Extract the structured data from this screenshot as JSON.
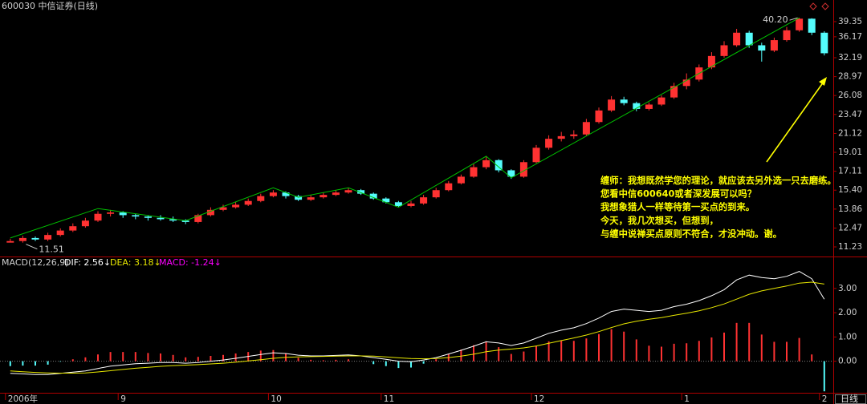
{
  "chart_data": [
    {
      "type": "candlestick",
      "title": "600030 中信证券(日线)",
      "period": "日线",
      "log_scale": true,
      "up_color": "#ff3232",
      "down_color": "#54fcfc",
      "categories": [
        "2006年",
        null,
        null,
        null,
        null,
        null,
        null,
        null,
        null,
        "9",
        null,
        null,
        null,
        null,
        null,
        null,
        null,
        null,
        null,
        null,
        null,
        "10",
        null,
        null,
        null,
        null,
        null,
        null,
        null,
        null,
        "11",
        null,
        null,
        null,
        null,
        null,
        null,
        null,
        null,
        null,
        null,
        null,
        "12",
        null,
        null,
        null,
        null,
        null,
        null,
        null,
        null,
        null,
        null,
        null,
        "1",
        null,
        null,
        null,
        null,
        null,
        null,
        null,
        null,
        null,
        null,
        "2"
      ],
      "open": [
        11.5,
        11.6,
        11.8,
        11.7,
        12.0,
        12.3,
        12.6,
        13.0,
        13.5,
        13.6,
        13.4,
        13.3,
        13.2,
        13.1,
        13.0,
        12.9,
        13.4,
        13.8,
        14.0,
        14.2,
        14.5,
        14.9,
        15.2,
        14.9,
        14.6,
        14.8,
        15.0,
        15.2,
        15.4,
        15.1,
        14.7,
        14.4,
        14.1,
        14.3,
        14.8,
        15.4,
        16.0,
        16.6,
        17.5,
        18.2,
        17.2,
        16.6,
        18.0,
        19.5,
        20.5,
        20.8,
        21.0,
        22.5,
        24.0,
        25.5,
        25.0,
        24.2,
        24.8,
        25.8,
        27.5,
        28.5,
        30.5,
        32.5,
        34.5,
        37.0,
        34.5,
        33.5,
        35.5,
        37.5,
        40.0,
        37.0
      ],
      "high": [
        11.75,
        11.95,
        11.9,
        12.15,
        12.45,
        12.8,
        13.2,
        13.7,
        13.8,
        13.7,
        13.5,
        13.4,
        13.4,
        13.3,
        13.1,
        13.5,
        14.0,
        14.2,
        14.4,
        14.7,
        15.1,
        15.4,
        15.3,
        15.0,
        15.0,
        15.2,
        15.4,
        15.6,
        15.5,
        15.2,
        14.8,
        14.5,
        14.5,
        15.0,
        15.6,
        16.2,
        16.8,
        17.8,
        18.6,
        18.3,
        17.3,
        18.2,
        19.8,
        20.9,
        21.3,
        21.5,
        22.9,
        24.4,
        26.0,
        25.9,
        25.2,
        25.1,
        26.1,
        28.0,
        29.5,
        31.0,
        33.2,
        35.3,
        37.8,
        37.4,
        35.0,
        36.0,
        38.2,
        40.2,
        40.1,
        37.3
      ],
      "low": [
        11.51,
        11.5,
        11.6,
        11.6,
        11.9,
        12.2,
        12.5,
        12.9,
        13.3,
        13.2,
        13.1,
        13.0,
        13.0,
        12.9,
        12.75,
        12.8,
        13.3,
        13.7,
        13.9,
        14.1,
        14.4,
        14.8,
        14.7,
        14.5,
        14.5,
        14.7,
        14.9,
        15.1,
        15.0,
        14.6,
        14.3,
        14.0,
        14.0,
        14.2,
        14.7,
        15.3,
        15.9,
        16.5,
        17.3,
        17.0,
        16.4,
        16.5,
        17.9,
        19.3,
        20.2,
        20.5,
        20.8,
        22.3,
        23.8,
        24.7,
        23.9,
        24.0,
        24.6,
        25.6,
        27.0,
        28.2,
        30.2,
        32.2,
        34.2,
        34.0,
        31.5,
        33.2,
        35.2,
        37.2,
        36.5,
        32.6
      ],
      "close": [
        11.6,
        11.8,
        11.7,
        12.0,
        12.3,
        12.6,
        13.0,
        13.5,
        13.6,
        13.4,
        13.3,
        13.2,
        13.1,
        13.0,
        12.9,
        13.4,
        13.8,
        14.0,
        14.2,
        14.5,
        14.9,
        15.2,
        14.9,
        14.6,
        14.8,
        15.0,
        15.2,
        15.4,
        15.1,
        14.7,
        14.4,
        14.1,
        14.3,
        14.8,
        15.4,
        16.0,
        16.6,
        17.5,
        18.2,
        17.2,
        16.6,
        18.0,
        19.5,
        20.5,
        20.8,
        21.0,
        22.5,
        24.0,
        25.5,
        25.0,
        24.2,
        24.8,
        25.8,
        27.5,
        28.5,
        30.5,
        32.5,
        34.5,
        37.0,
        34.5,
        33.5,
        35.5,
        37.5,
        40.0,
        37.0,
        33.0
      ],
      "strokes": {
        "color": "#00c000",
        "index": [
          0,
          7,
          14,
          21,
          23,
          27,
          31,
          38,
          40,
          63
        ],
        "values": [
          11.8,
          13.9,
          13.0,
          15.6,
          14.8,
          15.6,
          14.0,
          18.6,
          16.5,
          40.2
        ]
      },
      "high_label": "40.20",
      "low_label": "11.51",
      "ylim": [
        10.74,
        42.45
      ],
      "yticks": [
        39.35,
        36.17,
        32.19,
        28.97,
        26.08,
        23.47,
        21.12,
        19.01,
        17.11,
        {
          "value": 15.4,
          "label": "15.40"
        },
        13.86,
        12.47,
        11.23
      ],
      "annotation_lines": [
        "缠师：我想既然学您的理论，就应该去另外选一只去磨练。",
        "您看中信600640或者深发展可以吗？",
        "我想象猎人一样等待第一买点的到来。",
        "今天，我几次想买，但想到，",
        "与缠中说禅买点原则不符合，才没冲动。谢。"
      ]
    },
    {
      "type": "macd",
      "title": "MACD(12,26,9)",
      "up_color": "#ff3232",
      "down_color": "#54fcfc",
      "ylim": [
        -1.3,
        4.25
      ],
      "yticks": [
        {
          "value": 0,
          "label": "0.00"
        },
        {
          "value": 1,
          "label": "1.00"
        },
        {
          "value": 2,
          "label": "2.00"
        },
        {
          "value": 3,
          "label": "3.00"
        }
      ],
      "series": [
        {
          "name": "DIF: 2.56↓",
          "color": "#ffffff",
          "values": [
            -0.5,
            -0.52,
            -0.55,
            -0.55,
            -0.5,
            -0.45,
            -0.4,
            -0.3,
            -0.2,
            -0.15,
            -0.1,
            -0.08,
            -0.05,
            -0.05,
            -0.08,
            -0.05,
            0.0,
            0.05,
            0.12,
            0.2,
            0.28,
            0.35,
            0.32,
            0.25,
            0.22,
            0.22,
            0.24,
            0.26,
            0.22,
            0.15,
            0.08,
            0.0,
            -0.02,
            0.05,
            0.15,
            0.3,
            0.45,
            0.62,
            0.8,
            0.75,
            0.65,
            0.75,
            0.95,
            1.15,
            1.28,
            1.38,
            1.55,
            1.78,
            2.05,
            2.15,
            2.1,
            2.05,
            2.1,
            2.25,
            2.35,
            2.5,
            2.7,
            2.95,
            3.35,
            3.55,
            3.45,
            3.4,
            3.5,
            3.7,
            3.4,
            2.56
          ]
        },
        {
          "name": "DEA: 3.18↓",
          "color": "#e8e800",
          "values": [
            -0.4,
            -0.43,
            -0.46,
            -0.48,
            -0.49,
            -0.49,
            -0.48,
            -0.44,
            -0.39,
            -0.34,
            -0.29,
            -0.25,
            -0.21,
            -0.18,
            -0.16,
            -0.14,
            -0.11,
            -0.08,
            -0.04,
            0.01,
            0.06,
            0.12,
            0.16,
            0.18,
            0.19,
            0.2,
            0.21,
            0.22,
            0.22,
            0.21,
            0.18,
            0.14,
            0.11,
            0.1,
            0.11,
            0.15,
            0.21,
            0.29,
            0.39,
            0.46,
            0.5,
            0.55,
            0.63,
            0.74,
            0.85,
            0.96,
            1.08,
            1.22,
            1.39,
            1.54,
            1.65,
            1.73,
            1.8,
            1.89,
            1.98,
            2.08,
            2.21,
            2.36,
            2.56,
            2.76,
            2.9,
            3.0,
            3.1,
            3.22,
            3.26,
            3.18
          ]
        },
        {
          "name": "MACD: -1.24↓",
          "color": "#ff00ff",
          "values": [
            -0.2,
            -0.18,
            -0.18,
            -0.14,
            -0.02,
            0.08,
            0.16,
            0.28,
            0.38,
            0.38,
            0.38,
            0.34,
            0.32,
            0.26,
            0.16,
            0.18,
            0.22,
            0.26,
            0.32,
            0.38,
            0.44,
            0.46,
            0.32,
            0.14,
            0.06,
            0.04,
            0.06,
            0.08,
            0.0,
            -0.12,
            -0.2,
            -0.28,
            -0.26,
            -0.1,
            0.08,
            0.3,
            0.48,
            0.66,
            0.82,
            0.58,
            0.3,
            0.4,
            0.64,
            0.82,
            0.86,
            0.84,
            0.94,
            1.12,
            1.32,
            1.22,
            0.9,
            0.64,
            0.6,
            0.72,
            0.74,
            0.84,
            0.98,
            1.18,
            1.58,
            1.58,
            1.1,
            0.8,
            0.8,
            0.96,
            0.28,
            -1.24
          ]
        }
      ]
    }
  ]
}
